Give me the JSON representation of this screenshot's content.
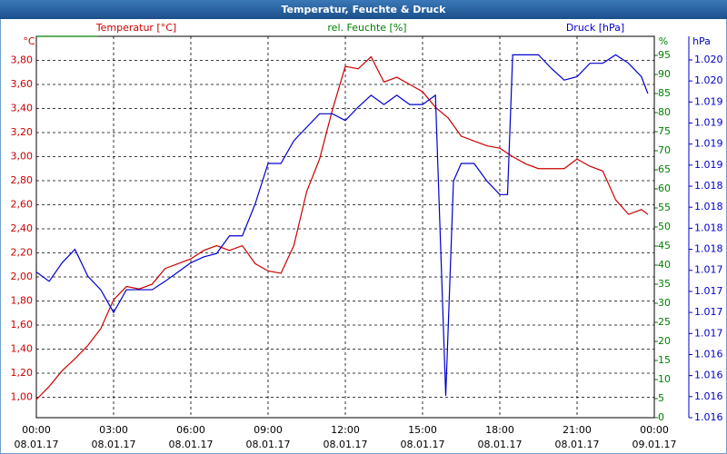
{
  "chart_data": {
    "type": "line",
    "title": "Temperatur, Feuchte & Druck",
    "xlim": [
      0,
      24
    ],
    "xticks": [
      {
        "value": 0,
        "label": "00:00"
      },
      {
        "value": 3,
        "label": "03:00"
      },
      {
        "value": 6,
        "label": "06:00"
      },
      {
        "value": 9,
        "label": "09:00"
      },
      {
        "value": 12,
        "label": "12:00"
      },
      {
        "value": 15,
        "label": "15:00"
      },
      {
        "value": 18,
        "label": "18:00"
      },
      {
        "value": 21,
        "label": "21:00"
      },
      {
        "value": 24,
        "label": "00:00"
      }
    ],
    "xtick_dates": [
      "08.01.17",
      "08.01.17",
      "08.01.17",
      "08.01.17",
      "08.01.17",
      "08.01.17",
      "08.01.17",
      "08.01.17",
      "09.01.17"
    ],
    "y_unit": "°C",
    "ylim": [
      0.83,
      4.0
    ],
    "yticks": [
      {
        "value": 1.0,
        "label": "1,00"
      },
      {
        "value": 1.2,
        "label": "1,20"
      },
      {
        "value": 1.4,
        "label": "1,40"
      },
      {
        "value": 1.6,
        "label": "1,60"
      },
      {
        "value": 1.8,
        "label": "1,80"
      },
      {
        "value": 2.0,
        "label": "2,00"
      },
      {
        "value": 2.2,
        "label": "2,20"
      },
      {
        "value": 2.4,
        "label": "2,40"
      },
      {
        "value": 2.6,
        "label": "2,60"
      },
      {
        "value": 2.8,
        "label": "2,80"
      },
      {
        "value": 3.0,
        "label": "3,00"
      },
      {
        "value": 3.2,
        "label": "3,20"
      },
      {
        "value": 3.4,
        "label": "3,40"
      },
      {
        "value": 3.6,
        "label": "3,60"
      },
      {
        "value": 3.8,
        "label": "3,80"
      }
    ],
    "y2_unit": "%",
    "y2lim": [
      0,
      100
    ],
    "y2ticks": [
      0,
      5,
      10,
      15,
      20,
      25,
      30,
      35,
      40,
      45,
      50,
      55,
      60,
      65,
      70,
      75,
      80,
      85,
      90,
      95
    ],
    "y3_unit": "hPa",
    "y3lim": [
      1.01575,
      1.02028
    ],
    "y3ticks": [
      {
        "value": 1.01575,
        "label": "1.016"
      },
      {
        "value": 1.016,
        "label": "1.016"
      },
      {
        "value": 1.01625,
        "label": "1.016"
      },
      {
        "value": 1.0165,
        "label": "1.016"
      },
      {
        "value": 1.01675,
        "label": "1.017"
      },
      {
        "value": 1.017,
        "label": "1.017"
      },
      {
        "value": 1.01725,
        "label": "1.017"
      },
      {
        "value": 1.0175,
        "label": "1.017"
      },
      {
        "value": 1.01775,
        "label": "1.018"
      },
      {
        "value": 1.018,
        "label": "1.018"
      },
      {
        "value": 1.01825,
        "label": "1.018"
      },
      {
        "value": 1.0185,
        "label": "1.018"
      },
      {
        "value": 1.01875,
        "label": "1.019"
      },
      {
        "value": 1.019,
        "label": "1.019"
      },
      {
        "value": 1.01925,
        "label": "1.019"
      },
      {
        "value": 1.0195,
        "label": "1.019"
      },
      {
        "value": 1.01975,
        "label": "1.020"
      },
      {
        "value": 1.02,
        "label": "1.020"
      }
    ],
    "grid": true,
    "series": [
      {
        "name": "Temperatur [°C]",
        "color": "#cc0000",
        "axis": "y",
        "x": [
          0,
          0.5,
          1,
          1.5,
          2,
          2.5,
          3,
          3.5,
          4,
          4.5,
          5,
          5.5,
          6,
          6.5,
          7,
          7.5,
          8,
          8.5,
          9,
          9.5,
          10,
          10.5,
          11,
          11.5,
          12,
          12.5,
          13,
          13.5,
          14,
          14.5,
          15,
          15.5,
          16,
          16.5,
          17,
          17.5,
          18,
          18.5,
          19,
          19.5,
          20,
          20.5,
          21,
          21.5,
          22,
          22.5,
          23,
          23.5,
          23.75
        ],
        "values": [
          0.98,
          1.09,
          1.22,
          1.32,
          1.43,
          1.57,
          1.81,
          1.92,
          1.9,
          1.94,
          2.07,
          2.11,
          2.15,
          2.22,
          2.26,
          2.22,
          2.26,
          2.11,
          2.05,
          2.03,
          2.26,
          2.71,
          2.98,
          3.39,
          3.75,
          3.73,
          3.83,
          3.62,
          3.66,
          3.6,
          3.54,
          3.41,
          3.32,
          3.17,
          3.13,
          3.09,
          3.07,
          3.0,
          2.94,
          2.9,
          2.9,
          2.9,
          2.98,
          2.92,
          2.88,
          2.64,
          2.52,
          2.56,
          2.52
        ]
      },
      {
        "name": "rel. Feuchte [%]",
        "color": "#008000",
        "axis": "y2",
        "x": [
          0,
          2.4
        ],
        "values": [
          100,
          100
        ]
      },
      {
        "name": "Druck [hPa]",
        "color": "#0000cc",
        "axis": "y3",
        "x": [
          0,
          0.5,
          1,
          1.5,
          2,
          2.5,
          3,
          3.5,
          4,
          4.5,
          5,
          5.5,
          6,
          6.5,
          7,
          7.5,
          8,
          8.5,
          9,
          9.5,
          10,
          10.5,
          11,
          11.5,
          12,
          12.5,
          13,
          13.5,
          14,
          14.5,
          15,
          15.5,
          15.9,
          16.2,
          16.5,
          17,
          17.5,
          18,
          18.3,
          18.5,
          19,
          19.5,
          20,
          20.5,
          21,
          21.5,
          22,
          22.5,
          23,
          23.5,
          23.75
        ],
        "values": [
          1.01748,
          1.01737,
          1.01759,
          1.01775,
          1.01743,
          1.01727,
          1.017,
          1.01727,
          1.01727,
          1.01727,
          1.01737,
          1.01748,
          1.01759,
          1.01766,
          1.0177,
          1.01791,
          1.01791,
          1.01829,
          1.01877,
          1.01877,
          1.01904,
          1.0192,
          1.01936,
          1.01936,
          1.01928,
          1.01944,
          1.01958,
          1.01947,
          1.01958,
          1.01947,
          1.01947,
          1.01958,
          1.01601,
          1.01856,
          1.01877,
          1.01877,
          1.01856,
          1.0184,
          1.0184,
          1.02006,
          1.02006,
          1.02006,
          1.0199,
          1.01976,
          1.0198,
          1.01996,
          1.01996,
          1.02006,
          1.01996,
          1.0198,
          1.0196
        ]
      }
    ]
  }
}
